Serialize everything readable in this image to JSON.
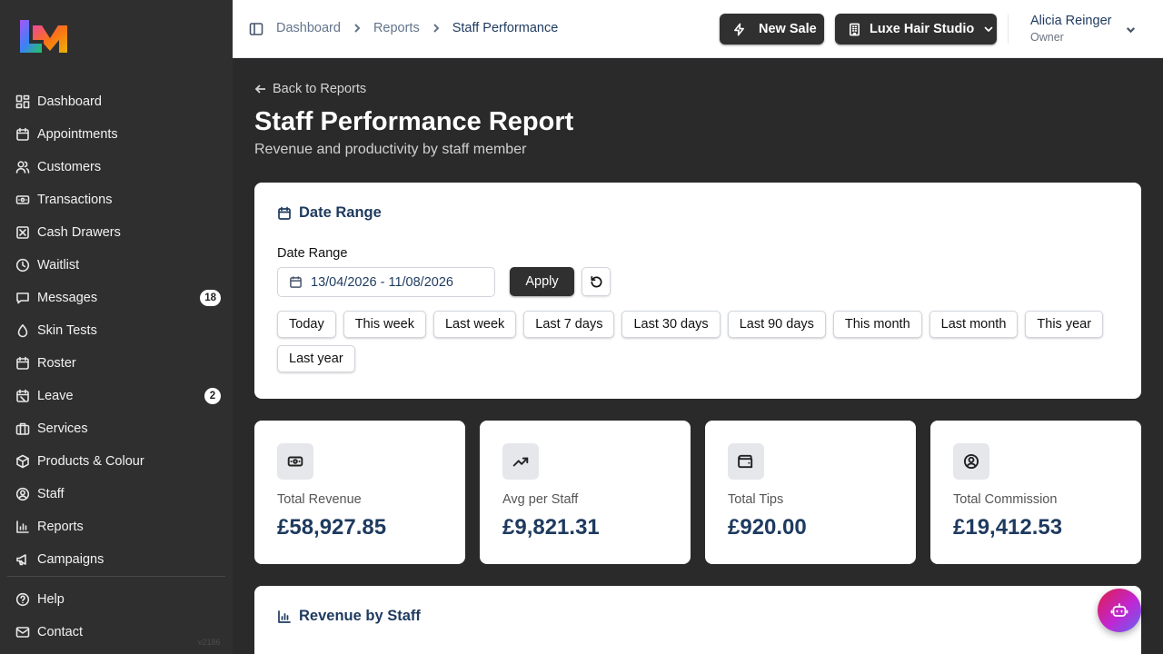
{
  "app": {
    "version": "v2186",
    "brand_colors": {
      "accent_dark": "#303031",
      "navy": "#1e3a5f"
    }
  },
  "sidebar": {
    "items": [
      {
        "label": "Dashboard",
        "icon": "grid-icon"
      },
      {
        "label": "Appointments",
        "icon": "calendar-icon"
      },
      {
        "label": "Customers",
        "icon": "users-icon"
      },
      {
        "label": "Transactions",
        "icon": "banknote-icon"
      },
      {
        "label": "Cash Drawers",
        "icon": "cash-drawer-icon"
      },
      {
        "label": "Waitlist",
        "icon": "clock-icon"
      },
      {
        "label": "Messages",
        "icon": "message-icon",
        "badge": "18"
      },
      {
        "label": "Skin Tests",
        "icon": "droplet-icon"
      },
      {
        "label": "Roster",
        "icon": "calendar-check-icon"
      },
      {
        "label": "Leave",
        "icon": "calendar-off-icon",
        "badge": "2"
      },
      {
        "label": "Services",
        "icon": "briefcase-icon"
      },
      {
        "label": "Products & Colour",
        "icon": "package-icon"
      },
      {
        "label": "Staff",
        "icon": "user-circle-icon"
      },
      {
        "label": "Reports",
        "icon": "bar-chart-icon"
      },
      {
        "label": "Campaigns",
        "icon": "megaphone-icon"
      }
    ],
    "bottom": [
      {
        "label": "Help",
        "icon": "help-circle-icon"
      },
      {
        "label": "Contact",
        "icon": "mail-icon"
      }
    ]
  },
  "header": {
    "breadcrumbs": [
      "Dashboard",
      "Reports",
      "Staff Performance"
    ],
    "new_sale_label": "New Sale",
    "studio_label": "Luxe Hair Studio",
    "user_name": "Alicia Reinger",
    "user_role": "Owner"
  },
  "main": {
    "back_label": "Back to Reports",
    "title": "Staff Performance Report",
    "subtitle": "Revenue and productivity by staff member",
    "date_card": {
      "heading": "Date Range",
      "field_label": "Date Range",
      "value": "13/04/2026 - 11/08/2026",
      "apply_label": "Apply",
      "presets": [
        "Today",
        "This week",
        "Last week",
        "Last 7 days",
        "Last 30 days",
        "Last 90 days",
        "This month",
        "Last month",
        "This year",
        "Last year"
      ]
    },
    "stats": [
      {
        "label": "Total Revenue",
        "value": "£58,927.85",
        "icon": "banknote-icon"
      },
      {
        "label": "Avg per Staff",
        "value": "£9,821.31",
        "icon": "trending-up-icon"
      },
      {
        "label": "Total Tips",
        "value": "£920.00",
        "icon": "wallet-icon"
      },
      {
        "label": "Total Commission",
        "value": "£19,412.53",
        "icon": "user-circle-icon"
      }
    ],
    "revenue_heading": "Revenue by Staff"
  }
}
